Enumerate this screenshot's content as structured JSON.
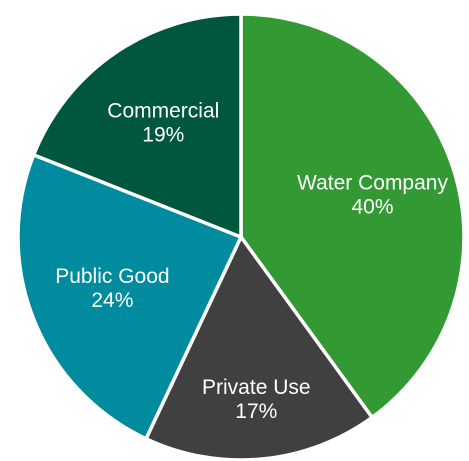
{
  "chart_data": {
    "type": "pie",
    "categories": [
      "Water Company",
      "Private Use",
      "Public Good",
      "Commercial"
    ],
    "values": [
      40,
      17,
      24,
      19
    ],
    "value_labels": [
      "40%",
      "17%",
      "24%",
      "19%"
    ],
    "colors": [
      "#339933",
      "#404041",
      "#008C9E",
      "#00573F"
    ],
    "label_colors": [
      "#ffffff",
      "#ffffff",
      "#ffffff",
      "#ffffff"
    ],
    "start": "12 o'clock",
    "direction": "clockwise",
    "slice_border": "#ffffff",
    "legend": "none",
    "title": ""
  }
}
